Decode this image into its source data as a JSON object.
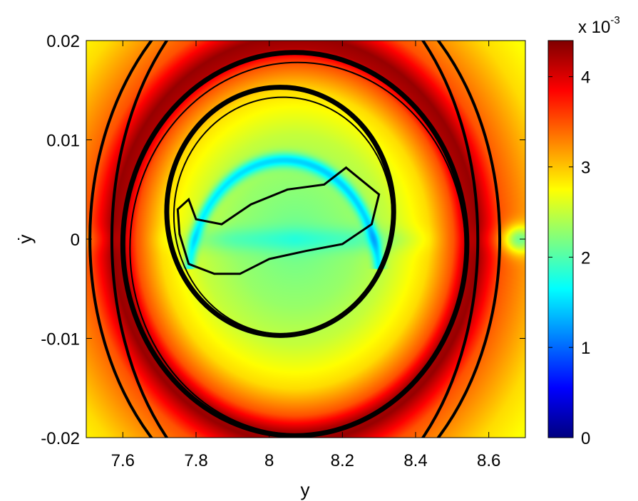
{
  "chart_data": {
    "type": "heatmap",
    "title": "",
    "xlabel": "y",
    "ylabel": "ẏ",
    "xlim": [
      7.5,
      8.7
    ],
    "ylim": [
      -0.02,
      0.02
    ],
    "xticks": [
      {
        "value": 7.6,
        "label": "7.6"
      },
      {
        "value": 7.8,
        "label": "7.8"
      },
      {
        "value": 8.0,
        "label": "8"
      },
      {
        "value": 8.2,
        "label": "8.2"
      },
      {
        "value": 8.4,
        "label": "8.4"
      },
      {
        "value": 8.6,
        "label": "8.6"
      }
    ],
    "yticks": [
      {
        "value": 0.02,
        "label": "0.02"
      },
      {
        "value": 0.01,
        "label": "0.01"
      },
      {
        "value": 0.0,
        "label": "0"
      },
      {
        "value": -0.01,
        "label": "-0.01"
      },
      {
        "value": -0.02,
        "label": "-0.02"
      }
    ],
    "colorbar": {
      "colormap": "jet",
      "range": [
        0,
        0.0044
      ],
      "exponent_label": "x 10",
      "exponent": "-3",
      "ticks": [
        {
          "value": 0.0,
          "label": "0"
        },
        {
          "value": 0.001,
          "label": "1"
        },
        {
          "value": 0.002,
          "label": "2"
        },
        {
          "value": 0.003,
          "label": "3"
        },
        {
          "value": 0.004,
          "label": "4"
        }
      ]
    },
    "grid": false,
    "field_center": [
      8.07,
      0.0
    ],
    "field_radial_profile": {
      "r_normalized": [
        0.0,
        0.35,
        0.55,
        0.78,
        0.92,
        1.0,
        1.06,
        1.2,
        1.5,
        1.8,
        2.2
      ],
      "value": [
        0.0021,
        0.0023,
        0.0025,
        0.0029,
        0.0035,
        0.0042,
        0.0043,
        0.0035,
        0.0029,
        0.0026,
        0.0024
      ]
    },
    "field_features": [
      {
        "kind": "low-value arc",
        "center": [
          8.05,
          0.005
        ],
        "note": "blue band inside inner loop"
      },
      {
        "kind": "low-value spot",
        "center": [
          8.68,
          0.0
        ]
      }
    ],
    "trajectories": [
      {
        "name": "outer orbit",
        "center": [
          8.07,
          -0.0005
        ],
        "x_radius": 0.47,
        "y_radius": 0.0193
      },
      {
        "name": "middle orbit",
        "center": [
          8.03,
          0.0028
        ],
        "x_radius": 0.31,
        "y_radius": 0.0125
      },
      {
        "name": "inner loop",
        "points": [
          [
            7.75,
            0.003
          ],
          [
            7.78,
            0.004
          ],
          [
            7.8,
            0.002
          ],
          [
            7.87,
            0.0015
          ],
          [
            7.95,
            0.0035
          ],
          [
            8.05,
            0.005
          ],
          [
            8.15,
            0.0055
          ],
          [
            8.21,
            0.0072
          ],
          [
            8.25,
            0.006
          ],
          [
            8.3,
            0.0045
          ],
          [
            8.28,
            0.0015
          ],
          [
            8.2,
            -0.0005
          ],
          [
            8.1,
            -0.0012
          ],
          [
            8.0,
            -0.002
          ],
          [
            7.92,
            -0.0035
          ],
          [
            7.85,
            -0.0035
          ],
          [
            7.78,
            -0.0025
          ],
          [
            7.755,
            0.0005
          ],
          [
            7.75,
            0.003
          ]
        ]
      },
      {
        "name": "left arc 1",
        "center": [
          8.07,
          0.0
        ],
        "x_radius": 0.56,
        "y_radius": 0.028
      },
      {
        "name": "left arc 2",
        "center": [
          8.07,
          0.0
        ],
        "x_radius": 0.5,
        "y_radius": 0.028
      }
    ]
  }
}
